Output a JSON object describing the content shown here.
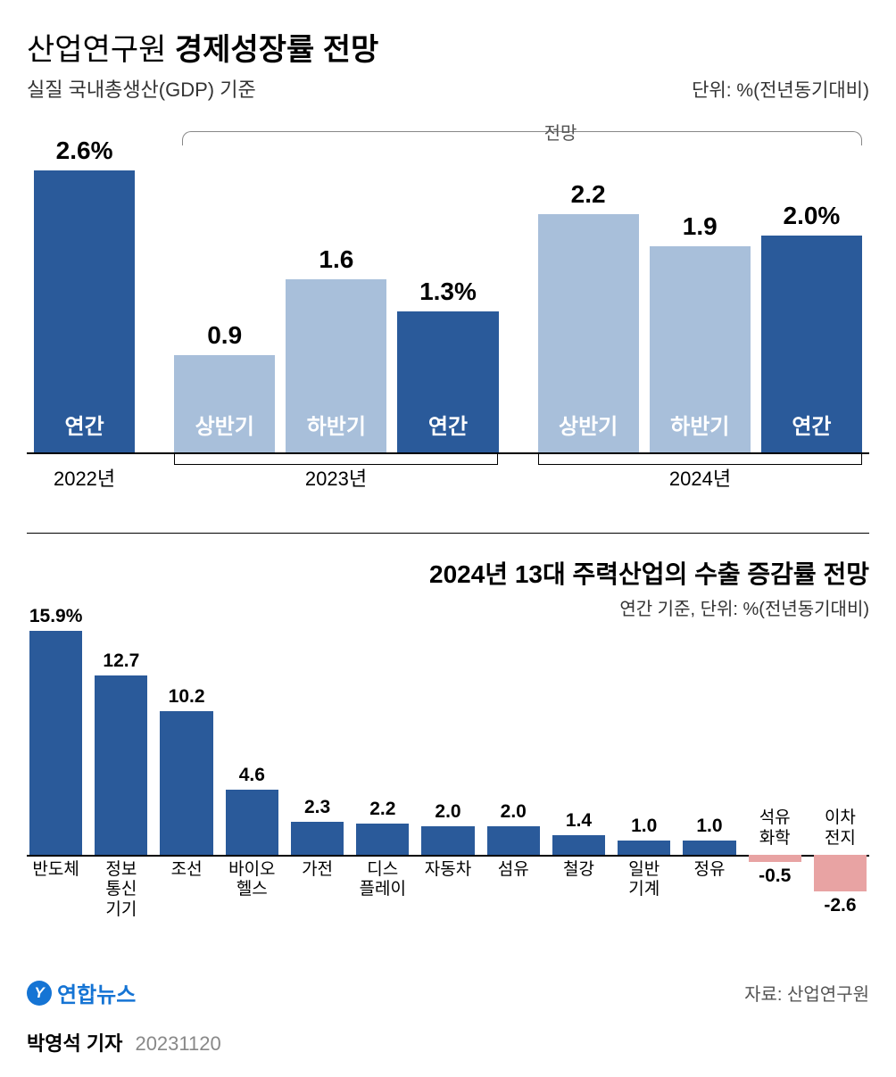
{
  "header": {
    "title_light": "산업연구원 ",
    "title_bold": "경제성장률 전망",
    "subtitle": "실질 국내총생산(GDP) 기준",
    "unit": "단위: %(전년동기대비)"
  },
  "chart1": {
    "type": "bar",
    "forecast_label": "전망",
    "max_value": 2.8,
    "colors": {
      "dark": "#2a5a9a",
      "light": "#a8bfda",
      "text_in_bar": "#ffffff"
    },
    "bars": [
      {
        "value_label": "2.6%",
        "value": 2.6,
        "in_label": "연간",
        "color": "dark"
      },
      {
        "value_label": "0.9",
        "value": 0.9,
        "in_label": "상반기",
        "color": "light"
      },
      {
        "value_label": "1.6",
        "value": 1.6,
        "in_label": "하반기",
        "color": "light"
      },
      {
        "value_label": "1.3%",
        "value": 1.3,
        "in_label": "연간",
        "color": "dark"
      },
      {
        "value_label": "2.2",
        "value": 2.2,
        "in_label": "상반기",
        "color": "light"
      },
      {
        "value_label": "1.9",
        "value": 1.9,
        "in_label": "하반기",
        "color": "light"
      },
      {
        "value_label": "2.0%",
        "value": 2.0,
        "in_label": "연간",
        "color": "dark"
      }
    ],
    "x_groups": [
      {
        "label": "2022년",
        "span": 1,
        "bracket": false
      },
      {
        "label": "2023년",
        "span": 3,
        "bracket": true
      },
      {
        "label": "2024년",
        "span": 3,
        "bracket": true
      }
    ]
  },
  "chart2": {
    "type": "bar",
    "title": "2024년 13대 주력산업의 수출 증감률 전망",
    "subtitle": "연간 기준, 단위: %(전년동기대비)",
    "max_positive": 16,
    "max_negative": 3,
    "colors": {
      "pos": "#2a5a9a",
      "neg": "#e8a3a3"
    },
    "bars": [
      {
        "label": "반도체",
        "value": 15.9,
        "value_label": "15.9%"
      },
      {
        "label": "정보\n통신\n기기",
        "value": 12.7,
        "value_label": "12.7"
      },
      {
        "label": "조선",
        "value": 10.2,
        "value_label": "10.2"
      },
      {
        "label": "바이오\n헬스",
        "value": 4.6,
        "value_label": "4.6"
      },
      {
        "label": "가전",
        "value": 2.3,
        "value_label": "2.3"
      },
      {
        "label": "디스\n플레이",
        "value": 2.2,
        "value_label": "2.2"
      },
      {
        "label": "자동차",
        "value": 2.0,
        "value_label": "2.0"
      },
      {
        "label": "섬유",
        "value": 2.0,
        "value_label": "2.0"
      },
      {
        "label": "철강",
        "value": 1.4,
        "value_label": "1.4"
      },
      {
        "label": "일반\n기계",
        "value": 1.0,
        "value_label": "1.0"
      },
      {
        "label": "정유",
        "value": 1.0,
        "value_label": "1.0"
      },
      {
        "label": "석유\n화학",
        "value": -0.5,
        "value_label": "-0.5"
      },
      {
        "label": "이차\n전지",
        "value": -2.6,
        "value_label": "-2.6"
      }
    ]
  },
  "footer": {
    "logo_text": "연합뉴스",
    "logo_glyph": "Y",
    "source": "자료: 산업연구원",
    "byline_name": "박영석 기자",
    "byline_date": "20231120"
  }
}
